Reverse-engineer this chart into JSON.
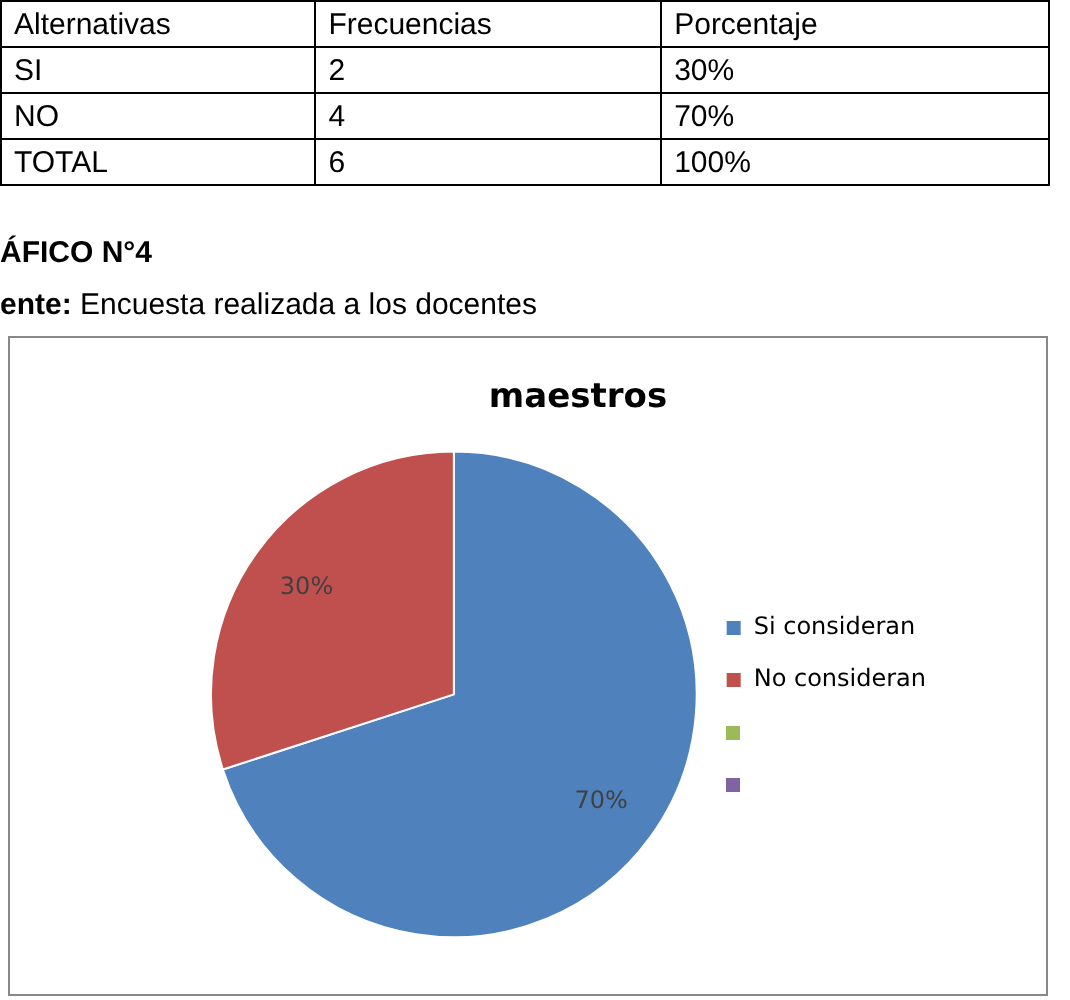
{
  "chart_data": {
    "type": "pie",
    "title": "maestros",
    "categories": [
      "Si consideran",
      "No consideran",
      null,
      null
    ],
    "values": [
      70,
      30,
      0,
      0
    ],
    "colors": [
      "#4f81bd",
      "#c0504d",
      "#9bbb59",
      "#8064a2"
    ],
    "value_labels": [
      "70%",
      "30%",
      null,
      null
    ],
    "legend": "right",
    "annotations": [
      "Alternativas",
      "Frecuencias",
      "Porcentaje",
      "SI",
      "2",
      "30%",
      "NO",
      "4",
      "70%",
      "TOTAL",
      "6",
      "100%",
      "ÁFICO N°4",
      "ente: Encuesta realizada a los docentes"
    ]
  }
}
